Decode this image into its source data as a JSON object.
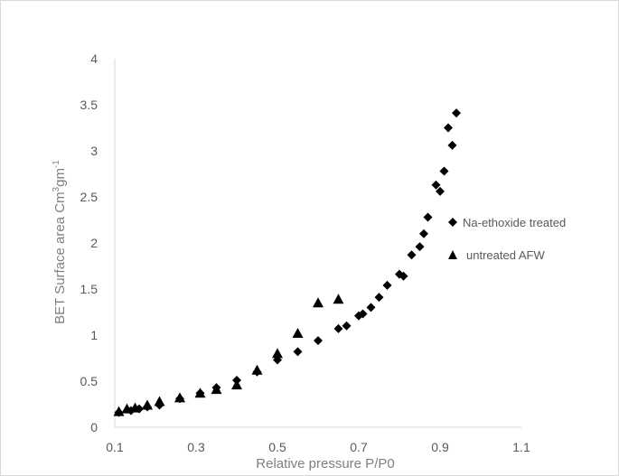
{
  "chart_data": {
    "type": "scatter",
    "xlabel": "Relative pressure P/P0",
    "ylabel_parts": [
      "BET Surface area Cm",
      "3",
      "gm",
      "-1"
    ],
    "xlim": [
      0.1,
      1.1
    ],
    "ylim": [
      0,
      4
    ],
    "xticks": [
      "0.1",
      "0.3",
      "0.5",
      "0.7",
      "0.9",
      "1.1"
    ],
    "yticks": [
      "0",
      "0.5",
      "1",
      "1.5",
      "2",
      "2.5",
      "3",
      "3.5",
      "4"
    ],
    "grid": false,
    "legend_position": "right",
    "series": [
      {
        "name": "Na-ethoxide treated",
        "marker": "diamond",
        "color": "#000000",
        "x": [
          0.11,
          0.14,
          0.16,
          0.18,
          0.21,
          0.26,
          0.31,
          0.35,
          0.4,
          0.45,
          0.5,
          0.55,
          0.6,
          0.65,
          0.67,
          0.7,
          0.71,
          0.73,
          0.75,
          0.77,
          0.8,
          0.81,
          0.83,
          0.85,
          0.86,
          0.87,
          0.89,
          0.9,
          0.91,
          0.92,
          0.93,
          0.94
        ],
        "y": [
          0.16,
          0.18,
          0.2,
          0.22,
          0.24,
          0.31,
          0.37,
          0.43,
          0.51,
          0.6,
          0.73,
          0.82,
          0.94,
          1.07,
          1.1,
          1.21,
          1.23,
          1.3,
          1.41,
          1.54,
          1.66,
          1.64,
          1.87,
          1.96,
          2.1,
          2.28,
          2.63,
          2.56,
          2.78,
          3.25,
          3.06,
          3.41
        ]
      },
      {
        "name": "untreated AFW",
        "marker": "triangle",
        "color": "#000000",
        "x": [
          0.11,
          0.13,
          0.15,
          0.18,
          0.21,
          0.26,
          0.31,
          0.35,
          0.4,
          0.45,
          0.5,
          0.55,
          0.6,
          0.65
        ],
        "y": [
          0.17,
          0.2,
          0.21,
          0.24,
          0.28,
          0.32,
          0.37,
          0.41,
          0.46,
          0.62,
          0.8,
          1.02,
          1.35,
          1.39
        ]
      }
    ]
  }
}
